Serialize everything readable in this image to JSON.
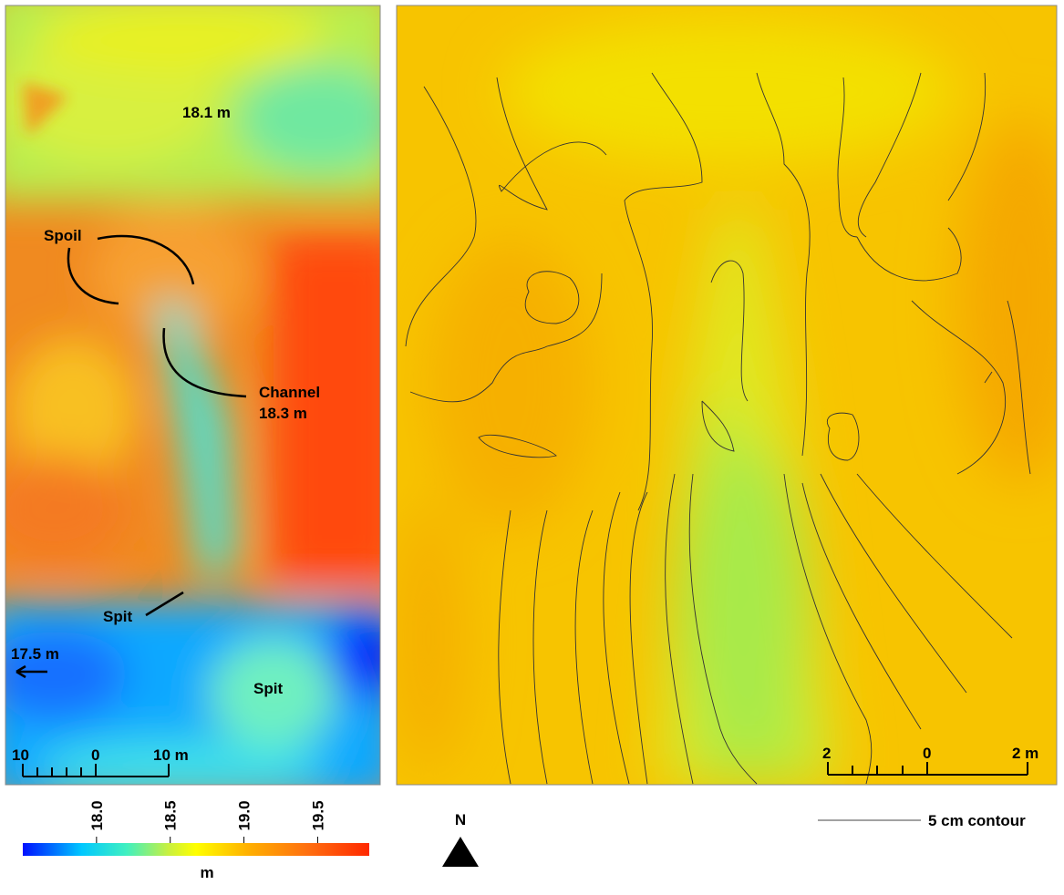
{
  "left_panel": {
    "labels": {
      "top_elevation": "18.1 m",
      "spoil": "Spoil",
      "channel": "Channel",
      "channel_elevation": "18.3 m",
      "spit_upper": "Spit",
      "west_elevation": "17.5 m",
      "spit_lower": "Spit"
    },
    "scale_bar": {
      "left": "10",
      "middle": "0",
      "right": "10 m"
    }
  },
  "right_panel": {
    "scale_bar": {
      "left": "2",
      "middle": "0",
      "right": "2 m"
    }
  },
  "colorbar": {
    "unit": "m",
    "range": [
      17.5,
      19.85
    ],
    "ticks": [
      {
        "value": 18,
        "label": "18.0"
      },
      {
        "value": 18.5,
        "label": "18.5"
      },
      {
        "value": 19,
        "label": "19.0"
      },
      {
        "value": 19.5,
        "label": "19.5"
      }
    ]
  },
  "north_arrow": {
    "label": "N"
  },
  "contour_legend": {
    "label": "5 cm contour"
  }
}
